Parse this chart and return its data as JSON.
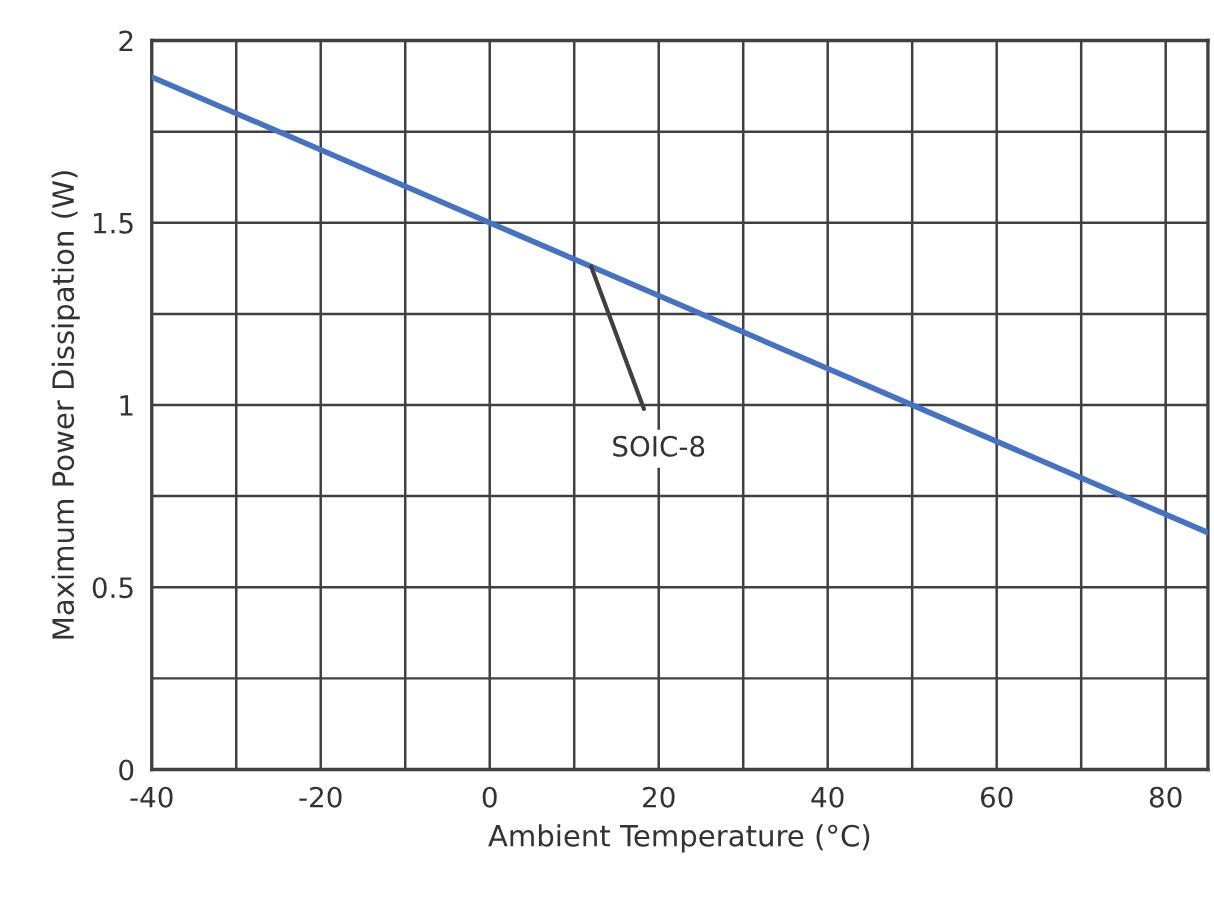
{
  "chart_data": {
    "type": "line",
    "xlabel": "Ambient Temperature (°C)",
    "ylabel": "Maximum Power Dissipation (W)",
    "x": [
      -40,
      85
    ],
    "series": [
      {
        "color": "#4472c4",
        "values": [
          1.9,
          0.65
        ]
      }
    ],
    "xlim": [
      -40,
      85
    ],
    "ylim": [
      0,
      2
    ],
    "xticks": [
      -40,
      {
        "value": -30,
        "label": null
      },
      -20,
      {
        "value": -10,
        "label": null
      },
      0,
      {
        "value": 10,
        "label": null
      },
      20,
      {
        "value": 30,
        "label": null
      },
      40,
      {
        "value": 50,
        "label": null
      },
      60,
      {
        "value": 70,
        "label": null
      },
      80
    ],
    "yticks": [
      0,
      {
        "value": 0.25,
        "label": null
      },
      0.5,
      {
        "value": 0.75,
        "label": null
      },
      1,
      {
        "value": 1.25,
        "label": null
      },
      1.5,
      {
        "value": 1.75,
        "label": null
      },
      2
    ],
    "grid": true,
    "legend": false,
    "marker": "none",
    "line_style": "solid",
    "annotations": [
      {
        "text": "SOIC-8",
        "x": 12,
        "y": 1.38
      }
    ]
  }
}
